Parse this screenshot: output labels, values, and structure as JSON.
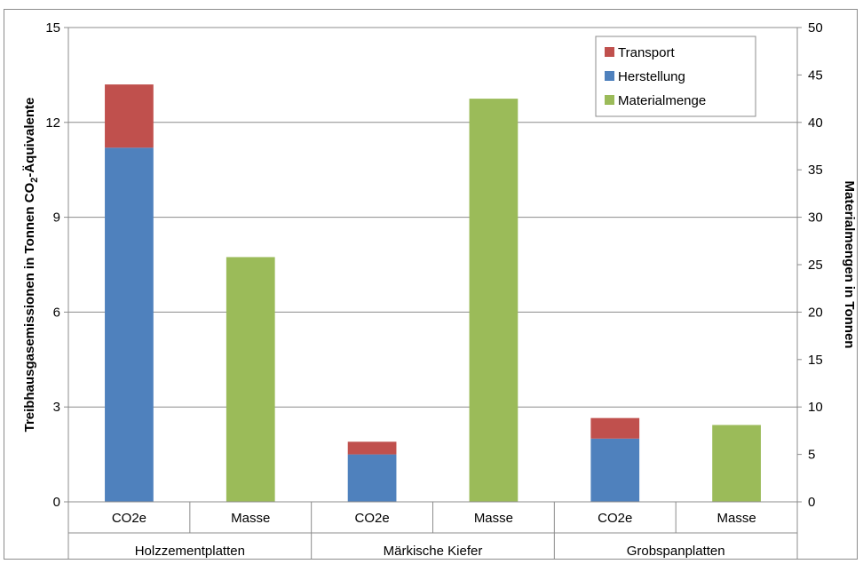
{
  "chart_data": {
    "type": "bar",
    "stacked": true,
    "dual_axis": true,
    "groups": [
      "Holzzementplatten",
      "Märkische Kiefer",
      "Grobspanplatten"
    ],
    "subcategories": [
      "CO2e",
      "Masse",
      "CO2e",
      "Masse",
      "CO2e",
      "Masse"
    ],
    "series": [
      {
        "name": "Herstellung",
        "axis": "left",
        "color": "#4f81bd",
        "values": [
          11.2,
          null,
          1.5,
          null,
          2.0,
          null
        ]
      },
      {
        "name": "Transport",
        "axis": "left",
        "color": "#c0504d",
        "values": [
          2.0,
          null,
          0.4,
          null,
          0.65,
          null
        ]
      },
      {
        "name": "Materialmenge",
        "axis": "right",
        "color": "#9bbb59",
        "values": [
          null,
          25.8,
          null,
          42.5,
          null,
          8.1
        ]
      }
    ],
    "legend_order": [
      "Transport",
      "Herstellung",
      "Materialmenge"
    ],
    "legend_position": "top-right",
    "y_left": {
      "label_parts": [
        "Treibhausgasemissionen in Tonnen CO",
        "2",
        "-Äquivalente"
      ],
      "lim": [
        0,
        15
      ],
      "ticks": [
        "0",
        "3",
        "6",
        "9",
        "12",
        "15"
      ]
    },
    "y_right": {
      "label": "Materialmengen in Tonnen",
      "lim": [
        0,
        50
      ],
      "ticks": [
        "0",
        "5",
        "10",
        "15",
        "20",
        "25",
        "30",
        "35",
        "40",
        "45",
        "50"
      ]
    },
    "grid": true
  }
}
